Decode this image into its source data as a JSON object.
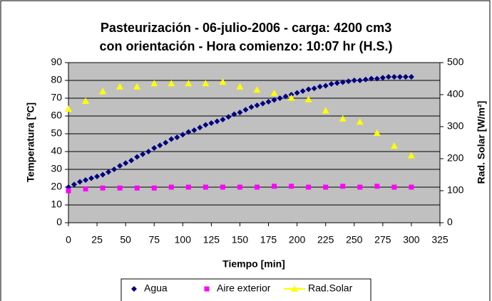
{
  "chart_data": {
    "type": "scatter",
    "title": [
      "Pasteurización - 06-julio-2006 - carga: 4200 cm3",
      "con orientación - Hora comienzo: 10:07 hr (H.S.)"
    ],
    "x_label": "Tiempo [min]",
    "y_label": "Temperatura [ºC]",
    "y2_label": "Rad. Solar [W/m²]",
    "xlim": [
      0,
      325
    ],
    "xticks": [
      0,
      25,
      50,
      75,
      100,
      125,
      150,
      175,
      200,
      225,
      250,
      275,
      300,
      325
    ],
    "ylim": [
      0,
      90
    ],
    "yticks": [
      0,
      10,
      20,
      30,
      40,
      50,
      60,
      70,
      80,
      90
    ],
    "y2lim": [
      0,
      500
    ],
    "y2ticks": [
      0,
      100,
      200,
      300,
      400,
      500
    ],
    "grid": true,
    "plot_background": "#c0c0c0",
    "legend": "bottom",
    "series": [
      {
        "name": "Agua",
        "color": "#000080",
        "marker": "diamond",
        "x": [
          0,
          5,
          10,
          15,
          20,
          25,
          30,
          35,
          40,
          45,
          50,
          55,
          60,
          65,
          70,
          75,
          80,
          85,
          90,
          95,
          100,
          105,
          110,
          115,
          120,
          125,
          130,
          135,
          140,
          145,
          150,
          155,
          160,
          165,
          170,
          175,
          180,
          185,
          190,
          195,
          200,
          205,
          210,
          215,
          220,
          225,
          230,
          235,
          240,
          245,
          250,
          255,
          260,
          265,
          270,
          275,
          280,
          285,
          290,
          295,
          300
        ],
        "values": [
          20,
          21.5,
          23,
          24,
          25,
          26,
          27,
          28.5,
          30,
          32,
          33.5,
          35,
          37,
          38.5,
          40,
          42,
          43.5,
          45,
          47,
          48,
          49.5,
          51,
          52,
          53.5,
          55,
          56,
          57,
          58,
          59.5,
          61,
          62,
          63.5,
          65,
          66,
          67,
          68,
          69,
          70,
          71,
          72,
          73,
          74,
          75,
          75.5,
          76.5,
          77,
          78,
          78.5,
          79,
          79.5,
          80,
          80,
          80.5,
          81,
          81,
          81.5,
          82,
          82,
          82,
          82,
          82
        ]
      },
      {
        "name": "Aire exterior",
        "color": "#ff00ff",
        "marker": "square",
        "x": [
          0,
          15,
          30,
          45,
          60,
          75,
          90,
          105,
          120,
          135,
          150,
          165,
          180,
          195,
          210,
          225,
          240,
          255,
          270,
          285,
          300
        ],
        "values": [
          18,
          19,
          19.5,
          19.5,
          19.5,
          19.5,
          20,
          20,
          20,
          20,
          20,
          20,
          20.5,
          20.5,
          20,
          20,
          20.5,
          20,
          20.5,
          20,
          20
        ]
      },
      {
        "name": "Rad.Solar",
        "color": "#ffff00",
        "marker": "triangle",
        "axis": "y2",
        "x": [
          0,
          15,
          30,
          45,
          60,
          75,
          90,
          105,
          120,
          135,
          150,
          165,
          180,
          195,
          210,
          225,
          240,
          255,
          270,
          285,
          300
        ],
        "values": [
          355,
          380,
          410,
          425,
          425,
          435,
          435,
          435,
          435,
          440,
          425,
          415,
          405,
          390,
          385,
          350,
          325,
          315,
          280,
          240,
          210
        ]
      }
    ]
  }
}
